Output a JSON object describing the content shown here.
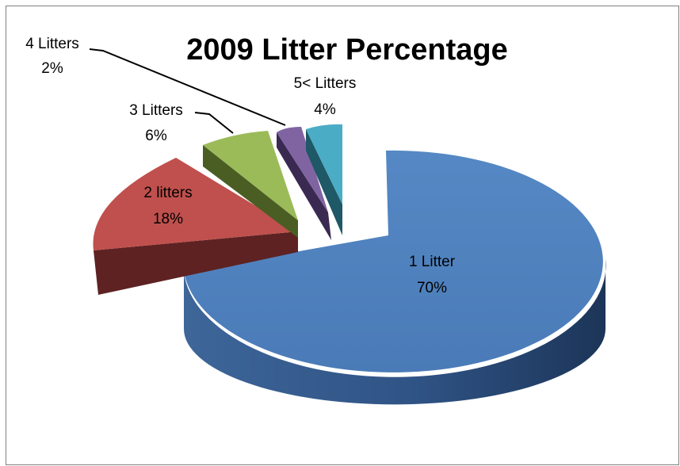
{
  "chart_data": {
    "type": "pie",
    "title": "2009 Litter Percentage",
    "three_d": true,
    "exploded": true,
    "slices": [
      {
        "label": "1 Litter",
        "value": 70,
        "value_text": "70%",
        "color": "#4F81BD",
        "side_color": "#2A4A77"
      },
      {
        "label": "2 litters",
        "value": 18,
        "value_text": "18%",
        "color": "#C0504D",
        "side_color": "#5E2222"
      },
      {
        "label": "3 Litters",
        "value": 6,
        "value_text": "6%",
        "color": "#9BBB59",
        "side_color": "#4A5E24"
      },
      {
        "label": "4 Litters",
        "value": 2,
        "value_text": "2%",
        "color": "#8064A2",
        "side_color": "#3A2A52"
      },
      {
        "label": "5< Litters",
        "value": 4,
        "value_text": "4%",
        "color": "#4BACC6",
        "side_color": "#1F5866"
      }
    ]
  }
}
